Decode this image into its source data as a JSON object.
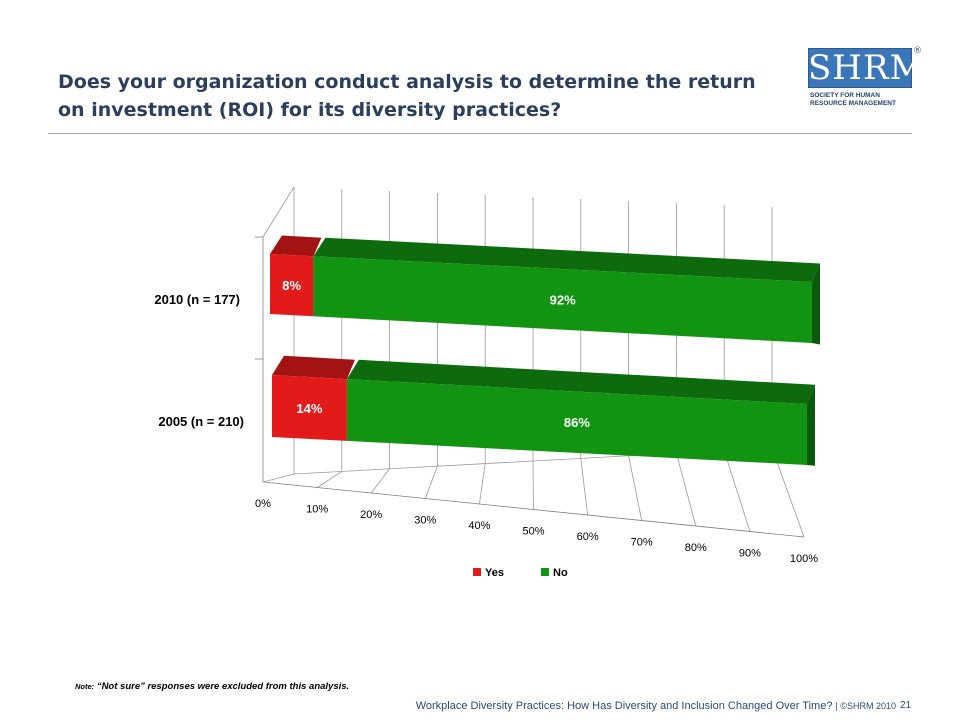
{
  "slide": {
    "title": "Does your organization conduct analysis to determine the return on investment (ROI) for its diversity practices?",
    "note_prefix": "Note:",
    "note_text": "“Not sure” responses were excluded from this analysis.",
    "footer_text": "Workplace Diversity Practices: How Has Diversity and Inclusion Changed Over Time?",
    "footer_copyright": "| ©SHRM 2010",
    "page_number": "21"
  },
  "logo": {
    "text": "SHRM",
    "registered": "®",
    "subtitle_line1": "SOCIETY FOR HUMAN",
    "subtitle_line2": "RESOURCE MANAGEMENT"
  },
  "chart_data": {
    "type": "bar",
    "orientation": "horizontal",
    "stacked": "100%",
    "three_d": true,
    "categories": [
      "2010 (n = 177)",
      "2005 (n = 210)"
    ],
    "series": [
      {
        "name": "Yes",
        "values": [
          8,
          14
        ],
        "color": "#e31a1a"
      },
      {
        "name": "No",
        "values": [
          92,
          86
        ],
        "color": "#129412"
      }
    ],
    "data_labels": [
      [
        "8%",
        "92%"
      ],
      [
        "14%",
        "86%"
      ]
    ],
    "xlim": [
      0,
      100
    ],
    "x_ticks": [
      "0%",
      "10%",
      "20%",
      "30%",
      "40%",
      "50%",
      "60%",
      "70%",
      "80%",
      "90%",
      "100%"
    ],
    "grid": true,
    "legend": "bottom"
  }
}
